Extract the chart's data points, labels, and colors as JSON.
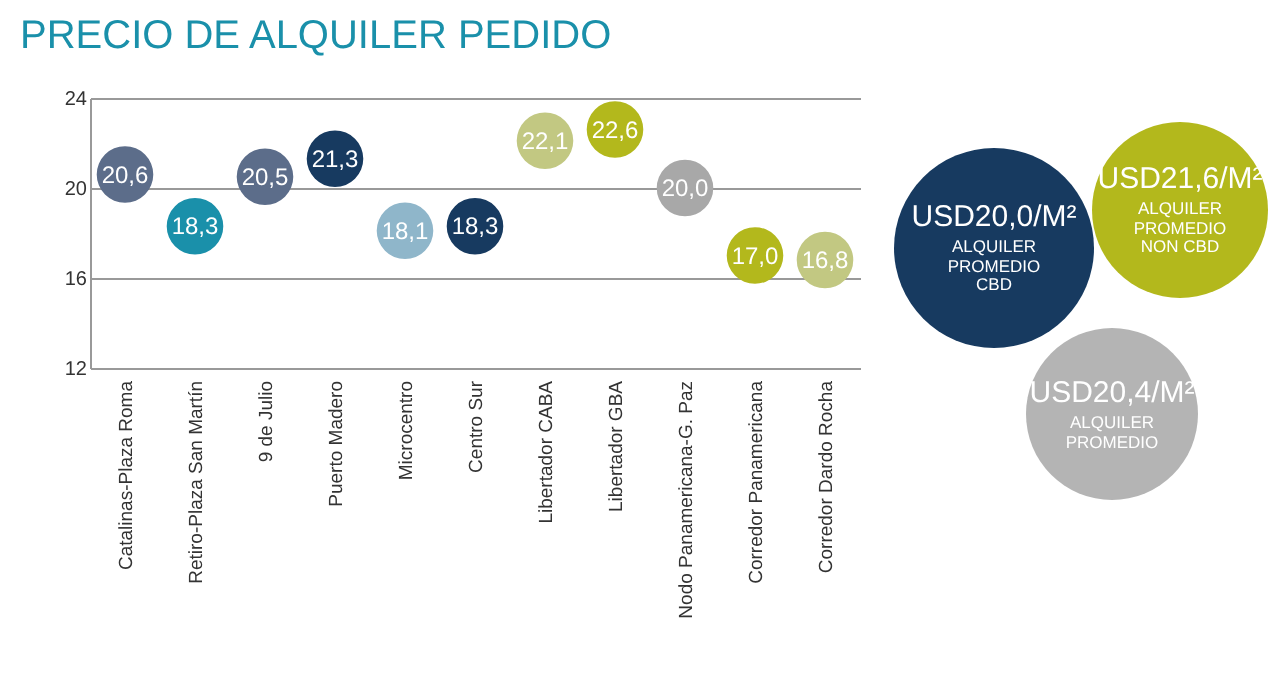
{
  "chart_data": {
    "type": "scatter",
    "title": "PRECIO DE ALQUILER PEDIDO",
    "categories": [
      "Catalinas-Plaza Roma",
      "Retiro-Plaza San Martín",
      "9 de Julio",
      "Puerto Madero",
      "Microcentro",
      "Centro Sur",
      "Libertador CABA",
      "Libertador GBA",
      "Nodo Panamericana-G. Paz",
      "Corredor Panamericana",
      "Corredor Dardo Rocha"
    ],
    "values": [
      20.6,
      18.3,
      20.5,
      21.3,
      18.1,
      18.3,
      22.1,
      22.6,
      20.0,
      17.0,
      16.8
    ],
    "value_labels": [
      "20,6",
      "18,3",
      "20,5",
      "21,3",
      "18,1",
      "18,3",
      "22,1",
      "22,6",
      "20,0",
      "17,0",
      "16,8"
    ],
    "colors": [
      "#5c6d8a",
      "#1a90aa",
      "#5c6d8a",
      "#173a60",
      "#8fb6ca",
      "#173a60",
      "#c2c882",
      "#b3b81c",
      "#a8a8a8",
      "#b3b81c",
      "#c2c882"
    ],
    "ylim": [
      12,
      24
    ],
    "yticks": [
      12,
      16,
      20,
      24
    ],
    "grid": "y",
    "marker": "circle",
    "annotations": [
      "USD20,0/M²",
      "ALQUILER PROMEDIO CBD",
      "USD21,6/M²",
      "ALQUILER PROMEDIO NON CBD",
      "USD20,4/M²",
      "ALQUILER PROMEDIO"
    ]
  }
}
